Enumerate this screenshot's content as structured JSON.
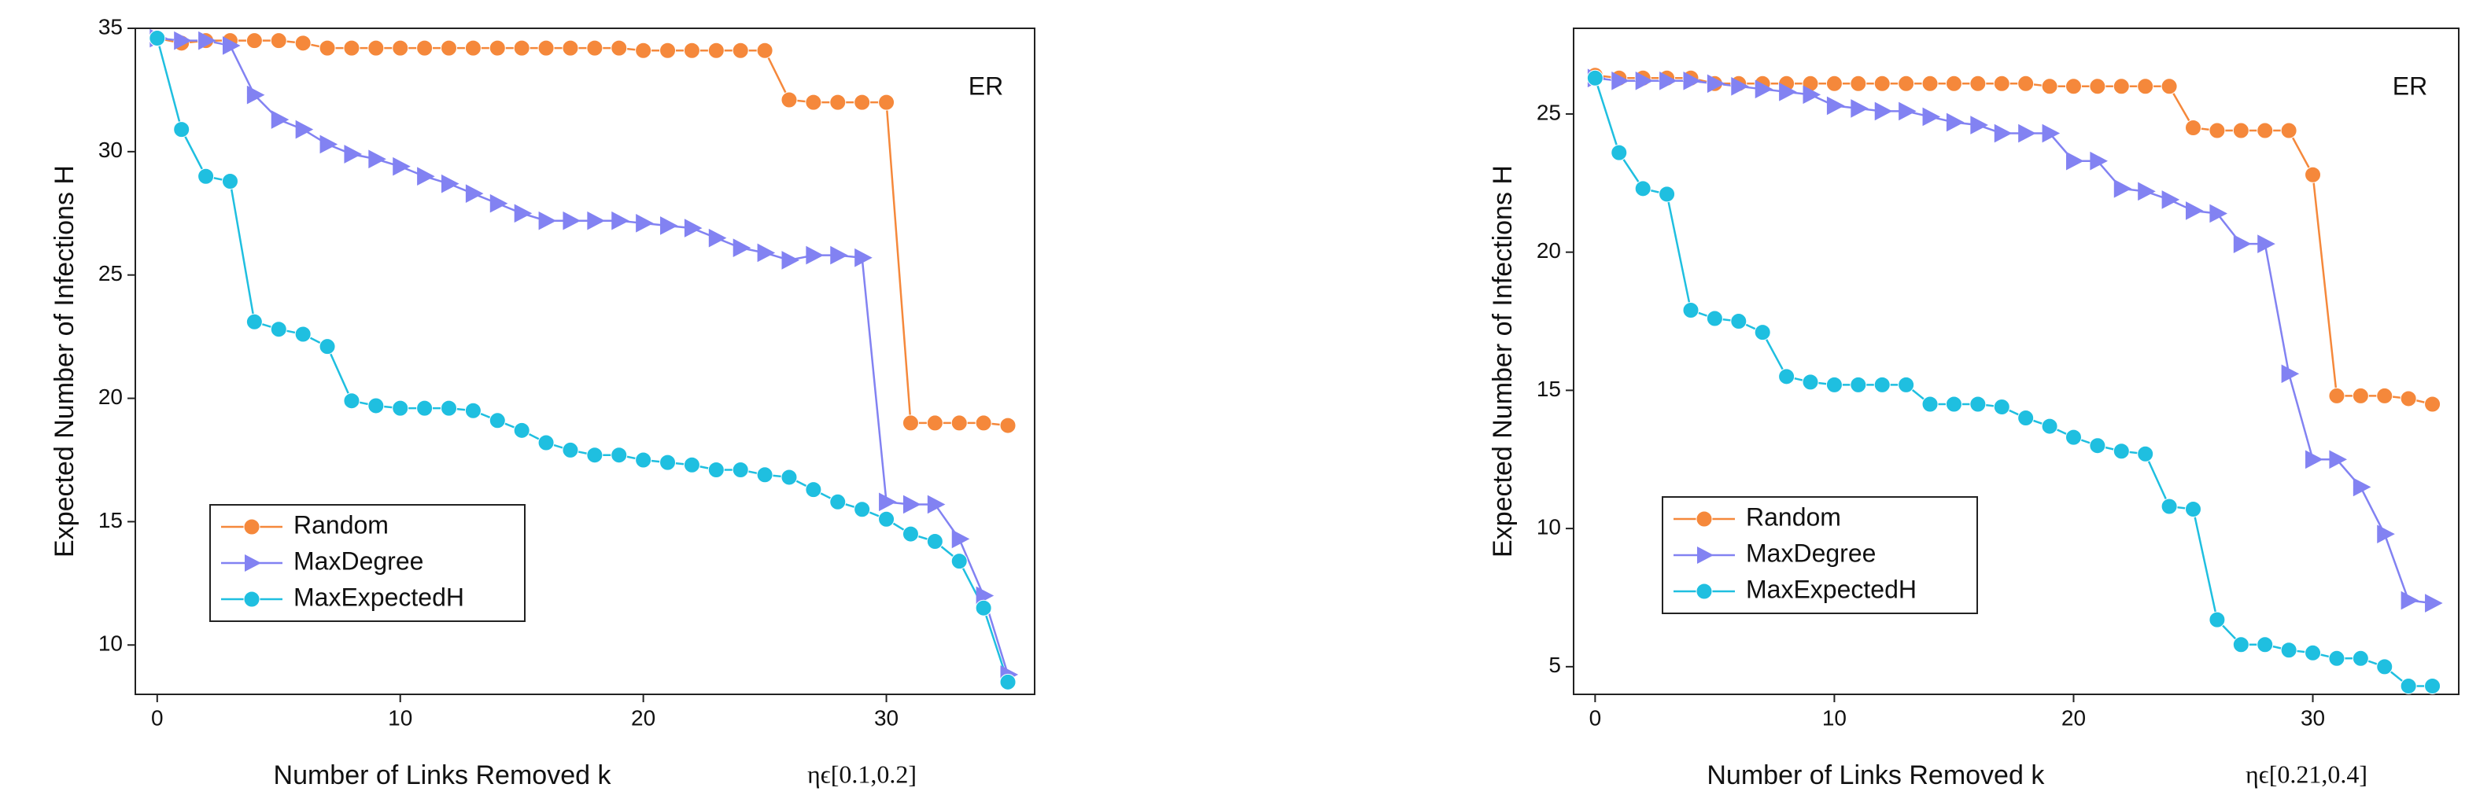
{
  "chart_data": [
    {
      "type": "line",
      "y_label": "Expected Number of Infections H",
      "x_label": "Number of Links Removed k",
      "annotation": "ηϵ[0.1,0.2]",
      "label": "ER",
      "x": [
        0,
        1,
        2,
        3,
        4,
        5,
        6,
        7,
        8,
        9,
        10,
        11,
        12,
        13,
        14,
        15,
        16,
        17,
        18,
        19,
        20,
        21,
        22,
        23,
        24,
        25,
        26,
        27,
        28,
        29,
        30,
        31,
        32,
        33,
        34,
        35
      ],
      "xlim": [
        -0.9,
        36.1
      ],
      "xticks": [
        0,
        10,
        20,
        30
      ],
      "ylim": [
        8,
        35
      ],
      "yticks": [
        10,
        15,
        20,
        25,
        30,
        35
      ],
      "legend": "lower left",
      "series": [
        {
          "name": "Random",
          "color": "#f5883b",
          "marker": "circle",
          "values": [
            34.6,
            34.4,
            34.5,
            34.5,
            34.5,
            34.5,
            34.4,
            34.2,
            34.2,
            34.2,
            34.2,
            34.2,
            34.2,
            34.2,
            34.2,
            34.2,
            34.2,
            34.2,
            34.2,
            34.2,
            34.1,
            34.1,
            34.1,
            34.1,
            34.1,
            34.1,
            32.1,
            32.0,
            32.0,
            32.0,
            32.0,
            19.0,
            19.0,
            19.0,
            19.0,
            18.9
          ]
        },
        {
          "name": "MaxDegree",
          "color": "#8282f2",
          "marker": "triangle",
          "values": [
            34.6,
            34.5,
            34.5,
            34.3,
            32.3,
            31.3,
            30.9,
            30.3,
            29.9,
            29.7,
            29.4,
            29.0,
            28.7,
            28.3,
            27.9,
            27.5,
            27.2,
            27.2,
            27.2,
            27.2,
            27.1,
            27.0,
            26.9,
            26.5,
            26.1,
            25.9,
            25.6,
            25.8,
            25.8,
            25.7,
            15.8,
            15.7,
            15.7,
            14.3,
            12.0,
            8.8
          ]
        },
        {
          "name": "MaxExpectedH",
          "color": "#1fbfe0",
          "marker": "circle",
          "values": [
            34.6,
            30.9,
            29.0,
            28.8,
            23.1,
            22.8,
            22.6,
            22.1,
            19.9,
            19.7,
            19.6,
            19.6,
            19.6,
            19.5,
            19.1,
            18.7,
            18.2,
            17.9,
            17.7,
            17.7,
            17.5,
            17.4,
            17.3,
            17.1,
            17.1,
            16.9,
            16.8,
            16.3,
            15.8,
            15.5,
            15.1,
            14.5,
            14.2,
            13.4,
            11.5,
            8.5
          ]
        }
      ]
    },
    {
      "type": "line",
      "y_label": "Expected Number of Infections H",
      "x_label": "Number of Links Removed k",
      "annotation": "ηϵ[0.21,0.4]",
      "label": "ER",
      "x": [
        0,
        1,
        2,
        3,
        4,
        5,
        6,
        7,
        8,
        9,
        10,
        11,
        12,
        13,
        14,
        15,
        16,
        17,
        18,
        19,
        20,
        21,
        22,
        23,
        24,
        25,
        26,
        27,
        28,
        29,
        30,
        31,
        32,
        33,
        34,
        35
      ],
      "xlim": [
        -0.9,
        36.1
      ],
      "xticks": [
        0,
        10,
        20,
        30
      ],
      "ylim": [
        4,
        28.1
      ],
      "yticks": [
        5,
        10,
        15,
        20,
        25
      ],
      "legend": "lower left",
      "series": [
        {
          "name": "Random",
          "color": "#f5883b",
          "marker": "circle",
          "values": [
            26.4,
            26.3,
            26.3,
            26.3,
            26.3,
            26.1,
            26.1,
            26.1,
            26.1,
            26.1,
            26.1,
            26.1,
            26.1,
            26.1,
            26.1,
            26.1,
            26.1,
            26.1,
            26.1,
            26.0,
            26.0,
            26.0,
            26.0,
            26.0,
            26.0,
            24.5,
            24.4,
            24.4,
            24.4,
            24.4,
            22.8,
            14.8,
            14.8,
            14.8,
            14.7,
            14.5
          ]
        },
        {
          "name": "MaxDegree",
          "color": "#8282f2",
          "marker": "triangle",
          "values": [
            26.3,
            26.2,
            26.2,
            26.2,
            26.2,
            26.1,
            26.0,
            25.9,
            25.8,
            25.7,
            25.3,
            25.2,
            25.1,
            25.1,
            24.9,
            24.7,
            24.6,
            24.3,
            24.3,
            24.3,
            23.3,
            23.3,
            22.3,
            22.2,
            21.9,
            21.5,
            21.4,
            20.3,
            20.3,
            15.6,
            12.5,
            12.5,
            11.5,
            9.8,
            7.4,
            7.3
          ]
        },
        {
          "name": "MaxExpectedH",
          "color": "#1fbfe0",
          "marker": "circle",
          "values": [
            26.3,
            23.6,
            22.3,
            22.1,
            17.9,
            17.6,
            17.5,
            17.1,
            15.5,
            15.3,
            15.2,
            15.2,
            15.2,
            15.2,
            14.5,
            14.5,
            14.5,
            14.4,
            14.0,
            13.7,
            13.3,
            13.0,
            12.8,
            12.7,
            10.8,
            10.7,
            6.7,
            5.8,
            5.8,
            5.6,
            5.5,
            5.3,
            5.3,
            5.0,
            4.3,
            4.3
          ]
        }
      ]
    }
  ]
}
